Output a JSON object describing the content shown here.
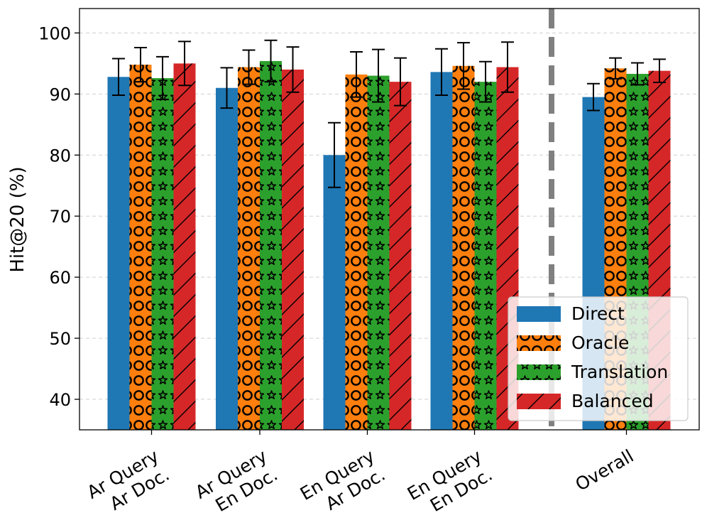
{
  "chart_data": {
    "type": "bar",
    "ylabel": "Hit@20 (%)",
    "xlabel": "",
    "ylim": [
      35,
      104
    ],
    "yticks": [
      40,
      50,
      60,
      70,
      80,
      90,
      100
    ],
    "grid": true,
    "legend_position": "lower-right",
    "categories": [
      [
        "Ar Query",
        "Ar Doc."
      ],
      [
        "Ar Query",
        "En Doc."
      ],
      [
        "En Query",
        "Ar Doc."
      ],
      [
        "En Query",
        "En Doc."
      ],
      [
        "Overall"
      ]
    ],
    "separator_after_category_index": 3,
    "series": [
      {
        "name": "Direct",
        "color": "#1f77b4",
        "pattern": "none",
        "values": [
          92.8,
          91.0,
          80.0,
          93.6,
          89.5
        ],
        "errors": [
          3.0,
          3.3,
          5.3,
          3.8,
          2.2
        ]
      },
      {
        "name": "Oracle",
        "color": "#ff7f0e",
        "pattern": "circles",
        "values": [
          94.8,
          94.4,
          93.2,
          94.6,
          94.2
        ],
        "errors": [
          2.8,
          2.8,
          3.7,
          3.8,
          1.7
        ]
      },
      {
        "name": "Translation",
        "color": "#2ca02c",
        "pattern": "stars",
        "values": [
          92.6,
          95.4,
          93.0,
          92.0,
          93.3
        ],
        "errors": [
          3.5,
          3.4,
          4.3,
          3.3,
          1.8
        ]
      },
      {
        "name": "Balanced",
        "color": "#d62728",
        "pattern": "diagonal",
        "values": [
          95.0,
          94.0,
          92.0,
          94.4,
          93.8
        ],
        "errors": [
          3.6,
          3.7,
          3.9,
          4.1,
          1.9
        ]
      }
    ]
  }
}
